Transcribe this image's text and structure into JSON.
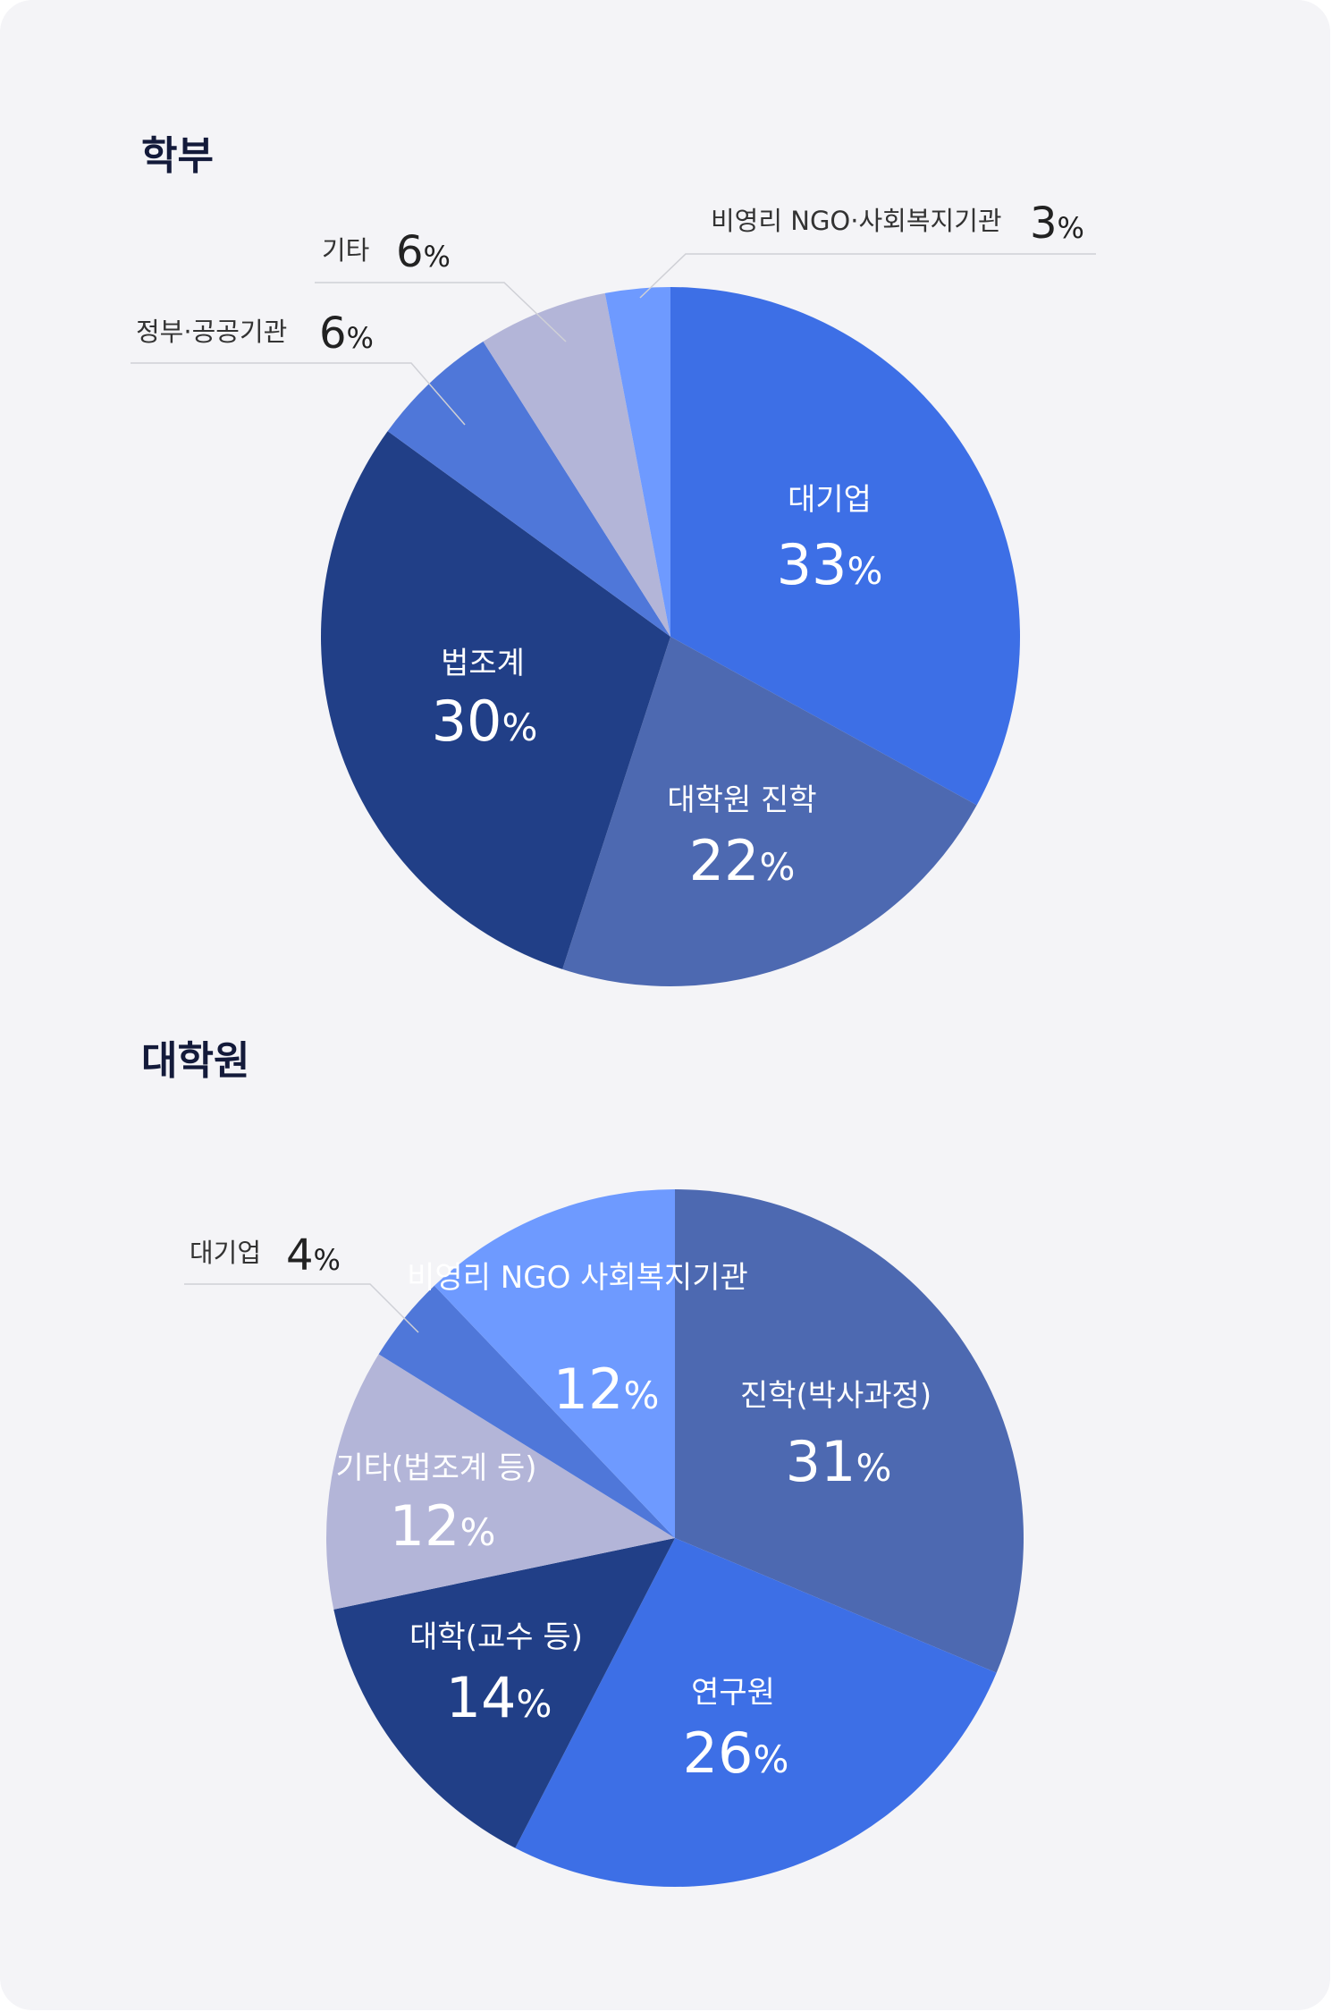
{
  "chart_data": [
    {
      "type": "pie",
      "title": "학부",
      "start": "12 o'clock, clockwise",
      "slices": [
        {
          "label": "대기업",
          "value": 33,
          "color": "#3d6fe6"
        },
        {
          "label": "대학원 진학",
          "value": 22,
          "color": "#4d69b1"
        },
        {
          "label": "법조계",
          "value": 30,
          "color": "#213f87"
        },
        {
          "label": "정부·공공기관",
          "value": 6,
          "color": "#4f77d9"
        },
        {
          "label": "기타",
          "value": 6,
          "color": "#b3b5d8"
        },
        {
          "label": "비영리 NGO·사회복지기관",
          "value": 3,
          "color": "#6e9aff"
        }
      ]
    },
    {
      "type": "pie",
      "title": "대학원",
      "start": "12 o'clock, clockwise",
      "slices": [
        {
          "label": "진학(박사과정)",
          "value": 31,
          "color": "#4d69b1"
        },
        {
          "label": "연구원",
          "value": 26,
          "color": "#3d6fe6"
        },
        {
          "label": "대학(교수 등)",
          "value": 14,
          "color": "#213f87"
        },
        {
          "label": "기타(법조계 등)",
          "value": 12,
          "color": "#b3b5d8"
        },
        {
          "label": "대기업",
          "value": 4,
          "color": "#4f77d9"
        },
        {
          "label": "비영리 NGO 사회복지기관",
          "value": 12,
          "color": "#6e9aff"
        }
      ]
    }
  ],
  "pct_symbol": "%"
}
